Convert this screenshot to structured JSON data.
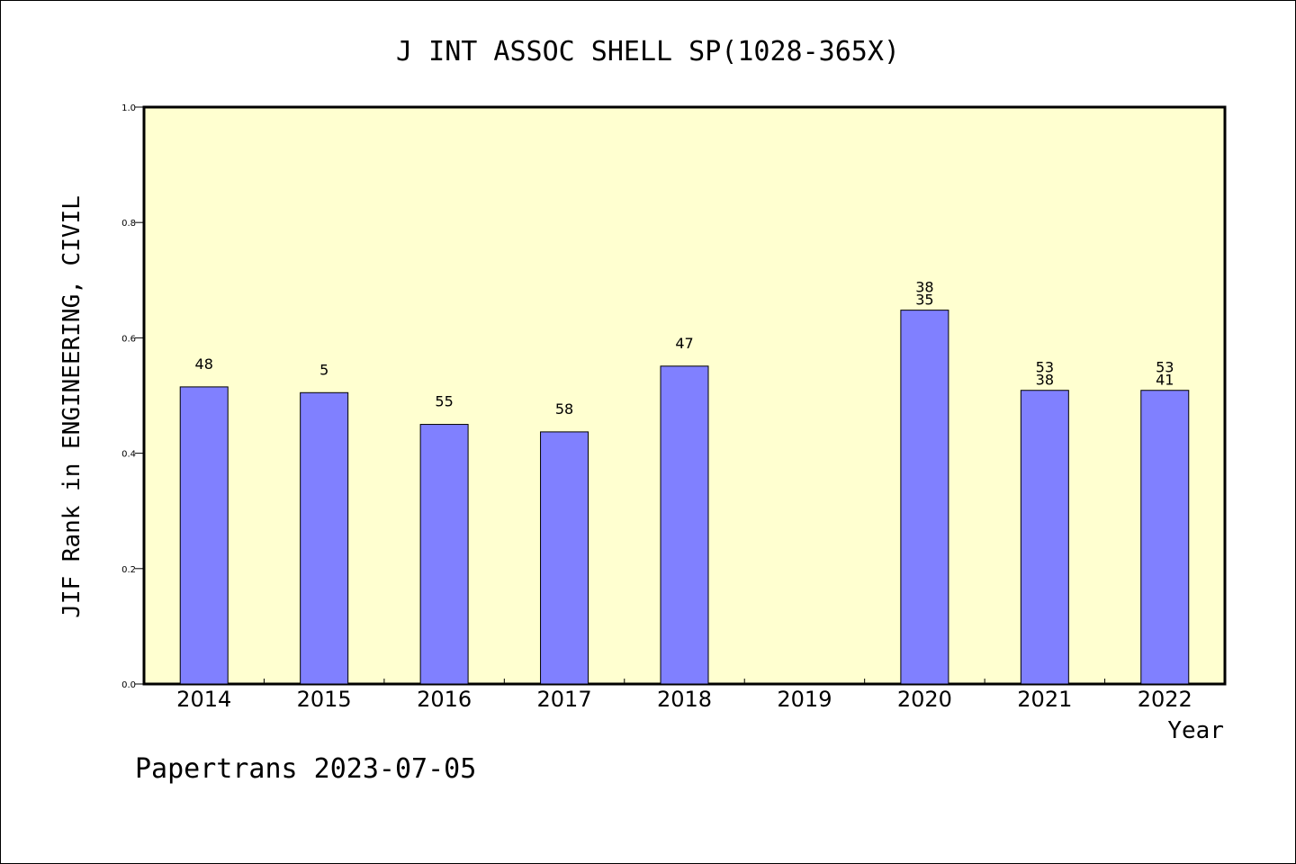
{
  "chart_data": {
    "type": "bar",
    "title": "J INT ASSOC SHELL SP(1028-365X)",
    "xlabel": "Year",
    "ylabel": "JIF Rank in ENGINEERING, CIVIL",
    "footer": "Papertrans 2023-07-05",
    "ylim": [
      0,
      1.0
    ],
    "yticks": [
      "0.0",
      "0.2",
      "0.4",
      "0.6",
      "0.8",
      "1.0"
    ],
    "categories": [
      "2014",
      "2015",
      "2016",
      "2017",
      "2018",
      "2019",
      "2020",
      "2021",
      "2022"
    ],
    "values": [
      0.515,
      0.505,
      0.45,
      0.437,
      0.551,
      null,
      0.648,
      0.509,
      0.509
    ],
    "bar_labels": [
      [
        "48"
      ],
      [
        "5"
      ],
      [
        "55"
      ],
      [
        "58"
      ],
      [
        "47"
      ],
      [],
      [
        "38",
        "35"
      ],
      [
        "53",
        "38"
      ],
      [
        "53",
        "41"
      ]
    ],
    "colors": {
      "plot_background": "#FFFFD0",
      "bar_fill": "#8080FF",
      "bar_stroke": "#000000"
    },
    "grid": false,
    "legend": "none"
  }
}
